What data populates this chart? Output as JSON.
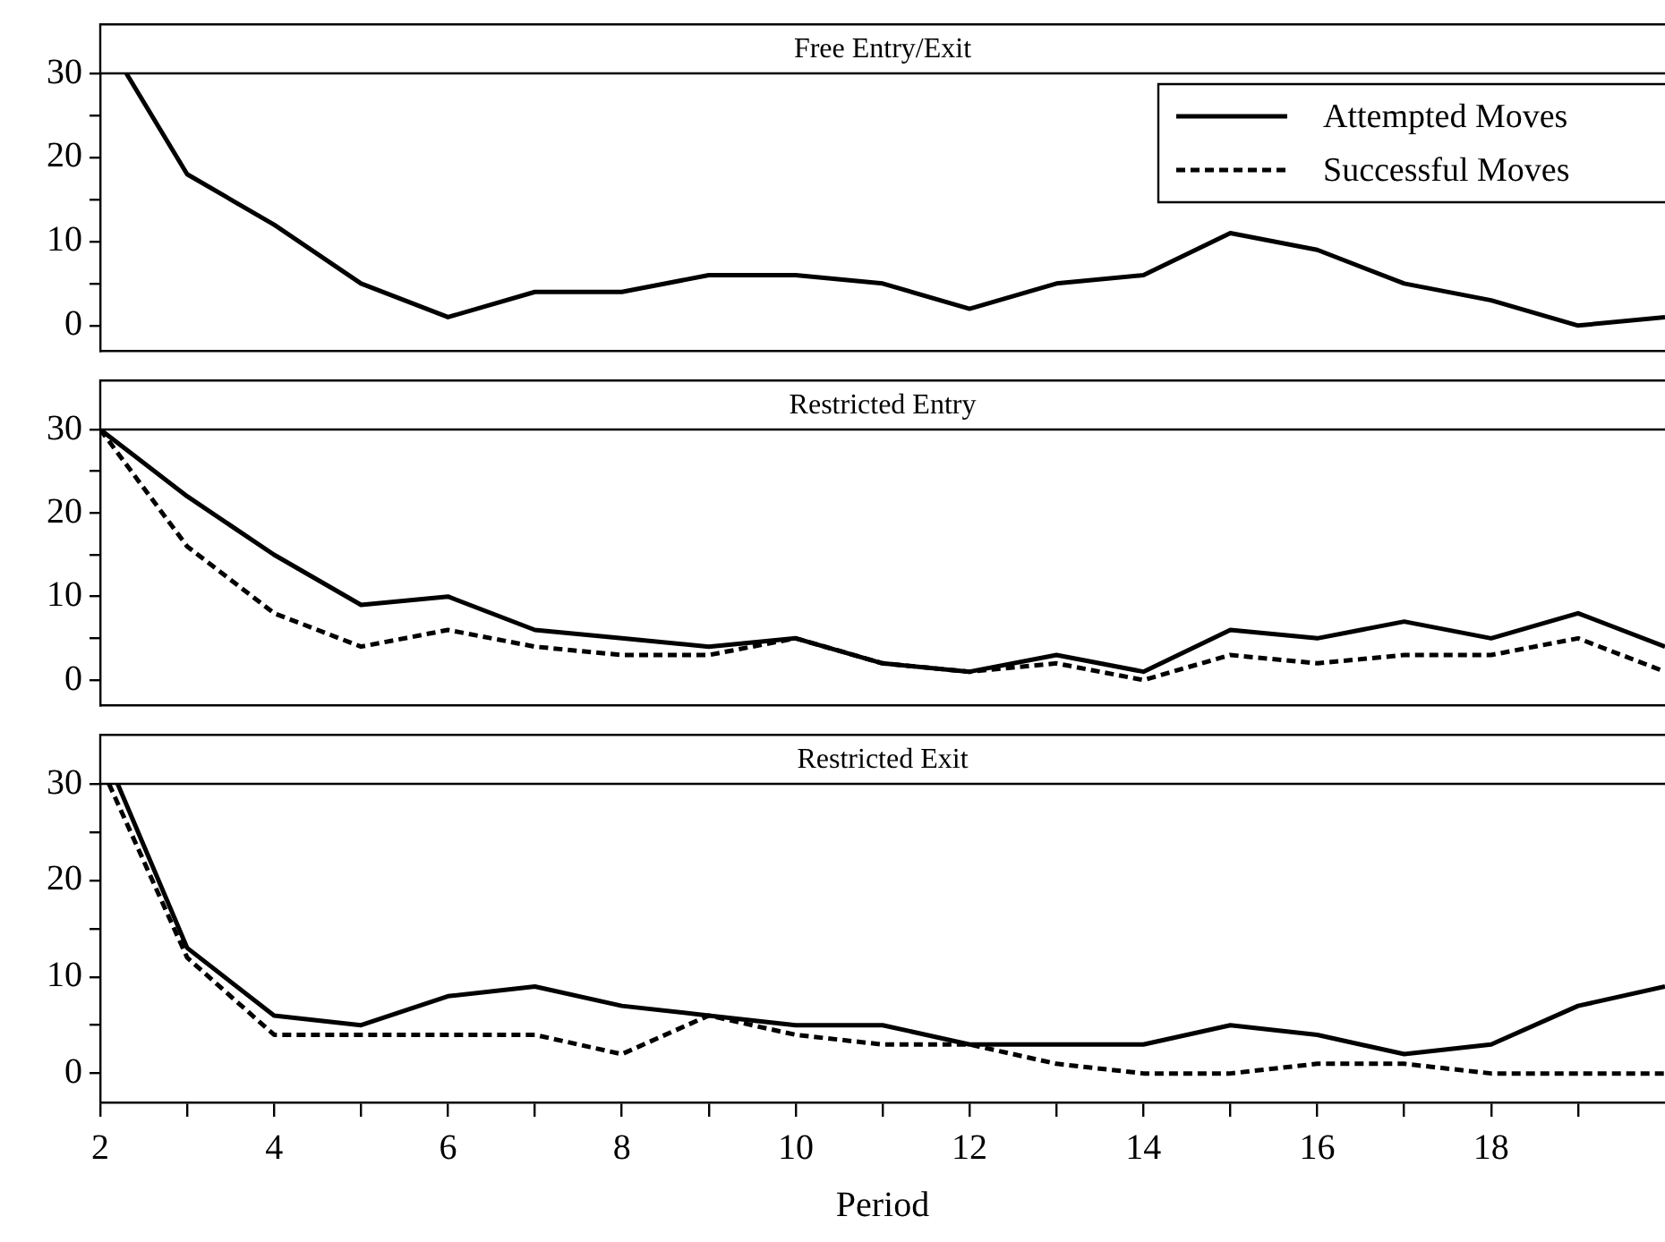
{
  "chart_data": [
    {
      "type": "line",
      "title": "Free Entry/Exit",
      "xlim": [
        2,
        20
      ],
      "ylim": [
        -3,
        30
      ],
      "yticks": [
        0,
        {
          "value": 5,
          "label": null
        },
        10,
        {
          "value": 15,
          "label": null
        },
        20,
        {
          "value": 25,
          "label": null
        },
        30
      ],
      "tick_labels": "y",
      "grid": false,
      "legend": "top right",
      "marker": "none",
      "series": [
        {
          "name": "Attempted Moves",
          "color": "#000000",
          "line_style": "solid",
          "x": [
            2.3,
            3,
            4,
            5,
            6,
            7,
            8,
            9,
            10,
            11,
            12,
            13,
            14,
            15,
            16,
            17,
            18,
            19,
            20
          ],
          "values": [
            30,
            18,
            12,
            5,
            1,
            4,
            4,
            6,
            6,
            5,
            2,
            5,
            6,
            11,
            9,
            5,
            3,
            0,
            1
          ]
        },
        {
          "name": "Successful Moves",
          "color": "#000000",
          "line_style": "dashed"
        }
      ]
    },
    {
      "type": "line",
      "title": "Restricted Entry",
      "x": [
        2,
        3,
        4,
        5,
        6,
        7,
        8,
        9,
        10,
        11,
        12,
        13,
        14,
        15,
        16,
        17,
        18,
        19,
        20
      ],
      "xlim": [
        2,
        20
      ],
      "ylim": [
        -3,
        30
      ],
      "yticks": [
        0,
        {
          "value": 5,
          "label": null
        },
        10,
        {
          "value": 15,
          "label": null
        },
        20,
        {
          "value": 25,
          "label": null
        },
        30
      ],
      "tick_labels": "y",
      "grid": false,
      "marker": "none",
      "series": [
        {
          "color": "#000000",
          "line_style": "solid",
          "values": [
            30,
            22,
            15,
            9,
            10,
            6,
            5,
            4,
            5,
            2,
            1,
            3,
            1,
            6,
            5,
            7,
            5,
            8,
            4
          ]
        },
        {
          "color": "#000000",
          "line_style": "dashed",
          "values": [
            30,
            16,
            8,
            4,
            6,
            4,
            3,
            3,
            5,
            2,
            1,
            2,
            0,
            3,
            2,
            3,
            3,
            5,
            1
          ]
        }
      ]
    },
    {
      "type": "line",
      "title": "Restricted Exit",
      "xlabel": "Period",
      "xlim": [
        2,
        20
      ],
      "xticks": [
        2,
        {
          "value": 3,
          "label": null
        },
        4,
        {
          "value": 5,
          "label": null
        },
        6,
        {
          "value": 7,
          "label": null
        },
        8,
        {
          "value": 9,
          "label": null
        },
        10,
        {
          "value": 11,
          "label": null
        },
        12,
        {
          "value": 13,
          "label": null
        },
        14,
        {
          "value": 15,
          "label": null
        },
        16,
        {
          "value": 17,
          "label": null
        },
        18,
        {
          "value": 19,
          "label": null
        }
      ],
      "ylim": [
        -3,
        30
      ],
      "yticks": [
        0,
        {
          "value": 5,
          "label": null
        },
        10,
        {
          "value": 15,
          "label": null
        },
        20,
        {
          "value": 25,
          "label": null
        },
        30
      ],
      "grid": false,
      "marker": "none",
      "series": [
        {
          "color": "#000000",
          "line_style": "solid",
          "x": [
            2.2,
            3,
            4,
            5,
            6,
            7,
            8,
            9,
            10,
            11,
            12,
            13,
            14,
            15,
            16,
            17,
            18,
            19,
            20
          ],
          "values": [
            30,
            13,
            6,
            5,
            8,
            9,
            7,
            6,
            5,
            5,
            3,
            3,
            3,
            5,
            4,
            2,
            3,
            7,
            9
          ]
        },
        {
          "color": "#000000",
          "line_style": "dashed",
          "x": [
            2.1,
            3,
            4,
            5,
            6,
            7,
            8,
            9,
            10,
            11,
            12,
            13,
            14,
            15,
            16,
            17,
            18,
            19,
            20
          ],
          "values": [
            30,
            12,
            4,
            4,
            4,
            4,
            2,
            6,
            4,
            3,
            3,
            1,
            0,
            0,
            1,
            1,
            0,
            0,
            0
          ]
        }
      ]
    }
  ]
}
